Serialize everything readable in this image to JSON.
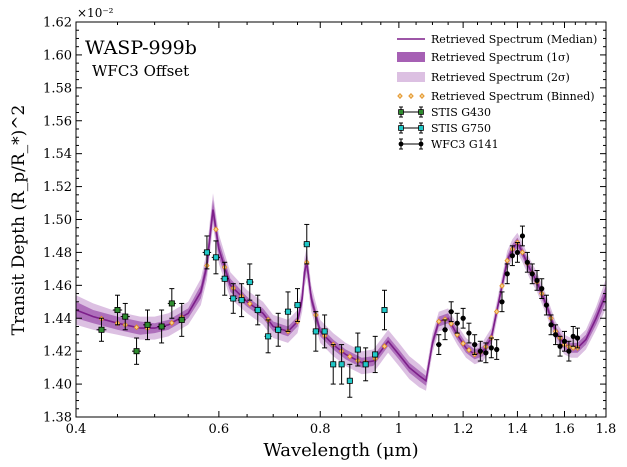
{
  "chart_data": {
    "type": "line",
    "title": "WASP-999b",
    "subtitle": "WFC3 Offset",
    "xlabel": "Wavelength (μm)",
    "ylabel": "Transit Depth (R_p/R_*)^2",
    "y_multiplier_label": "×10⁻²",
    "x_scale": "log",
    "xlim": [
      0.4,
      1.8
    ],
    "ylim": [
      1.38,
      1.62
    ],
    "x_ticks": [
      0.4,
      0.6,
      0.8,
      1.0,
      1.2,
      1.4,
      1.6,
      1.8
    ],
    "x_tick_labels": [
      "0.4",
      "0.6",
      "0.8",
      "1",
      "1.2",
      "1.4",
      "1.6",
      "1.8"
    ],
    "y_ticks": [
      1.38,
      1.4,
      1.42,
      1.44,
      1.46,
      1.48,
      1.5,
      1.52,
      1.54,
      1.56,
      1.58,
      1.6,
      1.62
    ],
    "y_tick_labels": [
      "1.38",
      "1.40",
      "1.42",
      "1.44",
      "1.46",
      "1.48",
      "1.50",
      "1.52",
      "1.54",
      "1.56",
      "1.58",
      "1.60",
      "1.62"
    ],
    "grid": false,
    "legend_position": "top-right",
    "legend": [
      {
        "label": "Retrieved Spectrum (Median)",
        "kind": "line"
      },
      {
        "label": "Retrieved Spectrum (1σ)",
        "kind": "band1"
      },
      {
        "label": "Retrieved Spectrum (2σ)",
        "kind": "band2"
      },
      {
        "label": "Retrieved Spectrum (Binned)",
        "kind": "diamond"
      },
      {
        "label": "STIS G430",
        "kind": "err-green"
      },
      {
        "label": "STIS G750",
        "kind": "err-cyan"
      },
      {
        "label": "WFC3 G141",
        "kind": "err-black"
      }
    ],
    "colors": {
      "median": "#7d1f8a",
      "band1": "#a660b4",
      "band2": "#dcc0e2",
      "binned": "#e08a1e",
      "stis_g430": "#2e8b2e",
      "stis_g750": "#20c8c8",
      "wfc3_g141": "#000000"
    },
    "model": {
      "x": [
        0.4,
        0.42,
        0.45,
        0.48,
        0.5,
        0.52,
        0.55,
        0.57,
        0.58,
        0.585,
        0.59,
        0.6,
        0.62,
        0.65,
        0.68,
        0.7,
        0.73,
        0.75,
        0.76,
        0.765,
        0.77,
        0.78,
        0.8,
        0.83,
        0.86,
        0.9,
        0.93,
        0.95,
        0.97,
        1.0,
        1.03,
        1.06,
        1.08,
        1.1,
        1.12,
        1.15,
        1.18,
        1.21,
        1.24,
        1.27,
        1.3,
        1.33,
        1.36,
        1.38,
        1.4,
        1.42,
        1.45,
        1.48,
        1.52,
        1.56,
        1.6,
        1.63,
        1.66,
        1.7,
        1.75,
        1.8
      ],
      "y": [
        1.445,
        1.441,
        1.437,
        1.434,
        1.434,
        1.436,
        1.443,
        1.456,
        1.472,
        1.49,
        1.506,
        1.482,
        1.46,
        1.45,
        1.443,
        1.435,
        1.432,
        1.438,
        1.452,
        1.468,
        1.474,
        1.452,
        1.432,
        1.424,
        1.418,
        1.413,
        1.414,
        1.42,
        1.426,
        1.418,
        1.41,
        1.405,
        1.402,
        1.425,
        1.438,
        1.44,
        1.43,
        1.422,
        1.418,
        1.42,
        1.428,
        1.452,
        1.475,
        1.482,
        1.486,
        1.48,
        1.47,
        1.462,
        1.448,
        1.432,
        1.424,
        1.422,
        1.422,
        1.427,
        1.44,
        1.455
      ],
      "sigma1": [
        0.005,
        0.004,
        0.004,
        0.004,
        0.003,
        0.003,
        0.003,
        0.004,
        0.005,
        0.006,
        0.006,
        0.005,
        0.004,
        0.003,
        0.003,
        0.003,
        0.003,
        0.003,
        0.004,
        0.005,
        0.005,
        0.004,
        0.003,
        0.003,
        0.003,
        0.003,
        0.003,
        0.003,
        0.003,
        0.003,
        0.003,
        0.003,
        0.003,
        0.003,
        0.003,
        0.003,
        0.003,
        0.003,
        0.003,
        0.003,
        0.003,
        0.003,
        0.003,
        0.003,
        0.003,
        0.003,
        0.003,
        0.003,
        0.003,
        0.003,
        0.003,
        0.003,
        0.003,
        0.003,
        0.004,
        0.005
      ],
      "sigma2": [
        0.009,
        0.008,
        0.007,
        0.007,
        0.007,
        0.007,
        0.007,
        0.008,
        0.009,
        0.01,
        0.01,
        0.009,
        0.008,
        0.007,
        0.007,
        0.007,
        0.007,
        0.007,
        0.008,
        0.009,
        0.009,
        0.008,
        0.007,
        0.007,
        0.007,
        0.007,
        0.007,
        0.007,
        0.007,
        0.007,
        0.007,
        0.007,
        0.006,
        0.006,
        0.006,
        0.006,
        0.006,
        0.006,
        0.006,
        0.006,
        0.006,
        0.006,
        0.006,
        0.006,
        0.006,
        0.006,
        0.006,
        0.006,
        0.006,
        0.006,
        0.006,
        0.006,
        0.006,
        0.006,
        0.007,
        0.009
      ]
    },
    "series": [
      {
        "name": "STIS G430",
        "x": [
          0.43,
          0.45,
          0.46,
          0.475,
          0.49,
          0.51,
          0.525,
          0.54
        ],
        "y": [
          1.433,
          1.445,
          1.441,
          1.42,
          1.436,
          1.435,
          1.449,
          1.439
        ],
        "xerr": [
          0.006,
          0.006,
          0.006,
          0.006,
          0.006,
          0.006,
          0.006,
          0.006
        ],
        "yerr": [
          0.007,
          0.009,
          0.008,
          0.008,
          0.009,
          0.01,
          0.009,
          0.01
        ]
      },
      {
        "name": "STIS G750",
        "x": [
          0.58,
          0.595,
          0.61,
          0.625,
          0.64,
          0.655,
          0.67,
          0.69,
          0.71,
          0.73,
          0.75,
          0.77,
          0.79,
          0.81,
          0.83,
          0.85,
          0.87,
          0.89,
          0.91,
          0.935,
          0.96
        ],
        "y": [
          1.48,
          1.477,
          1.464,
          1.452,
          1.451,
          1.462,
          1.445,
          1.429,
          1.433,
          1.444,
          1.448,
          1.485,
          1.432,
          1.432,
          1.412,
          1.412,
          1.402,
          1.421,
          1.412,
          1.418,
          1.445
        ],
        "xerr": [
          0.007,
          0.007,
          0.007,
          0.007,
          0.007,
          0.007,
          0.007,
          0.007,
          0.007,
          0.007,
          0.007,
          0.007,
          0.007,
          0.007,
          0.007,
          0.007,
          0.007,
          0.007,
          0.007,
          0.007,
          0.007
        ],
        "yerr": [
          0.01,
          0.01,
          0.01,
          0.009,
          0.01,
          0.011,
          0.009,
          0.01,
          0.01,
          0.012,
          0.01,
          0.012,
          0.012,
          0.01,
          0.012,
          0.012,
          0.01,
          0.01,
          0.01,
          0.011,
          0.012
        ]
      },
      {
        "name": "WFC3 G141",
        "x": [
          1.12,
          1.14,
          1.16,
          1.18,
          1.2,
          1.22,
          1.24,
          1.26,
          1.28,
          1.3,
          1.32,
          1.34,
          1.36,
          1.38,
          1.4,
          1.42,
          1.44,
          1.46,
          1.48,
          1.5,
          1.52,
          1.54,
          1.56,
          1.58,
          1.6,
          1.62,
          1.64,
          1.66
        ],
        "y": [
          1.424,
          1.433,
          1.444,
          1.437,
          1.44,
          1.431,
          1.424,
          1.42,
          1.419,
          1.422,
          1.421,
          1.45,
          1.467,
          1.478,
          1.48,
          1.49,
          1.474,
          1.467,
          1.463,
          1.458,
          1.448,
          1.436,
          1.43,
          1.423,
          1.426,
          1.42,
          1.429,
          1.428
        ],
        "xerr": [
          0.009,
          0.009,
          0.009,
          0.009,
          0.009,
          0.009,
          0.009,
          0.009,
          0.009,
          0.009,
          0.009,
          0.009,
          0.009,
          0.009,
          0.009,
          0.009,
          0.009,
          0.009,
          0.009,
          0.009,
          0.009,
          0.009,
          0.009,
          0.009,
          0.009,
          0.009,
          0.009,
          0.009
        ],
        "yerr": [
          0.006,
          0.006,
          0.006,
          0.006,
          0.006,
          0.006,
          0.006,
          0.006,
          0.006,
          0.006,
          0.006,
          0.006,
          0.006,
          0.006,
          0.006,
          0.006,
          0.006,
          0.006,
          0.006,
          0.006,
          0.006,
          0.006,
          0.006,
          0.006,
          0.006,
          0.006,
          0.006,
          0.006
        ]
      }
    ]
  }
}
